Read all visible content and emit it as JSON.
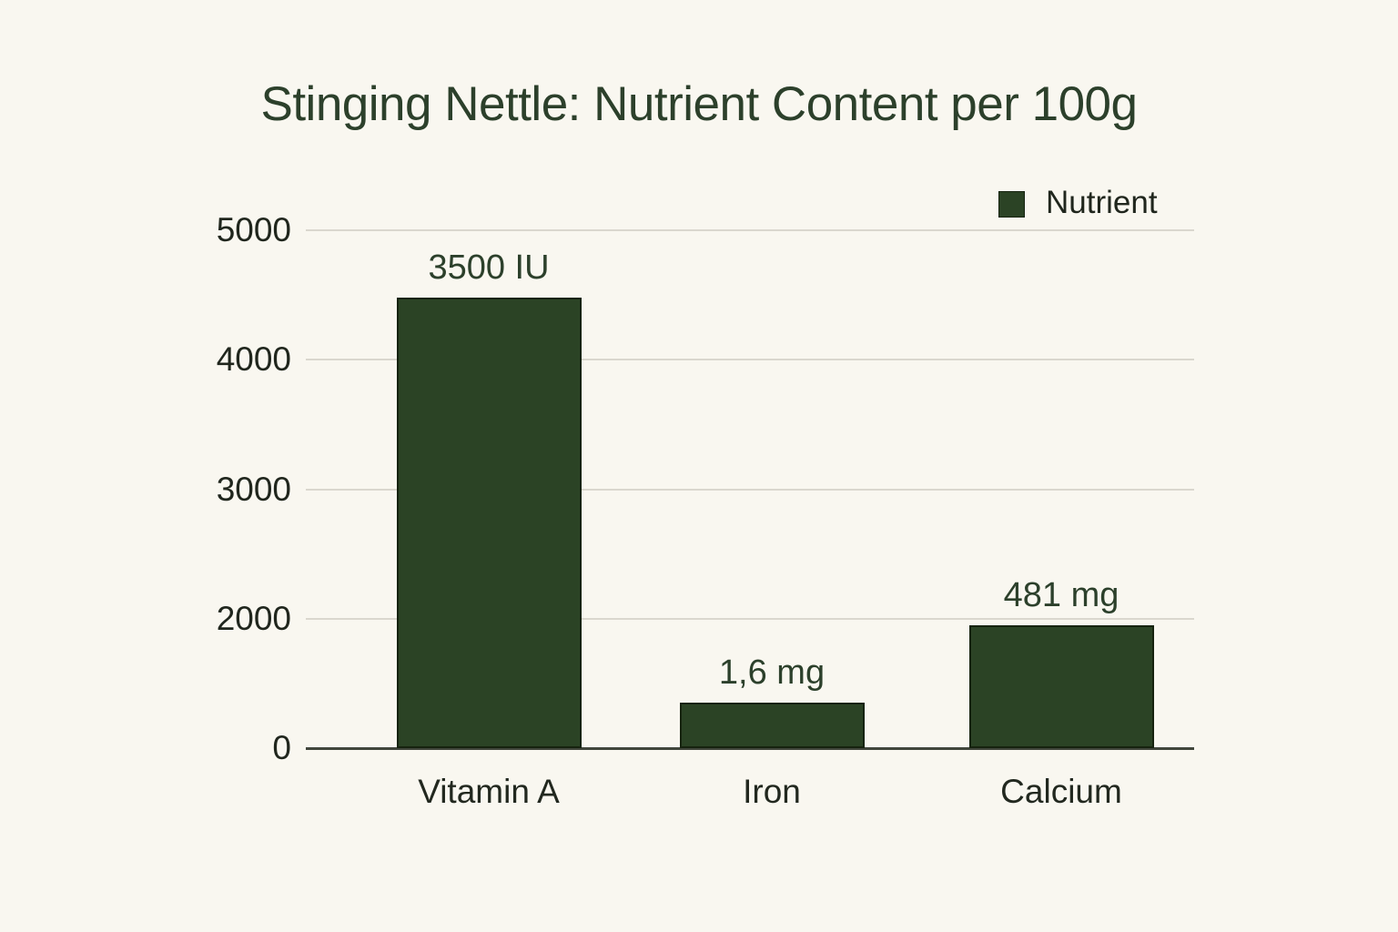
{
  "title": "Stinging Nettle: Nutrient Content per 100g",
  "legend": {
    "label": "Nutrient"
  },
  "colors": {
    "background": "#f9f7f0",
    "bar_fill": "#2b4325",
    "bar_border": "#16230f",
    "grid_line": "#dad7ce",
    "axis_line": "#41463c",
    "title_text": "#2c402b",
    "tick_text": "#20261d",
    "category_text": "#22281f",
    "value_label_text": "#2c402b"
  },
  "chart_data": {
    "type": "bar",
    "title": "Stinging Nettle: Nutrient Content per 100g",
    "categories": [
      "Vitamin A",
      "Iron",
      "Calcium"
    ],
    "values": [
      3500,
      1.6,
      481
    ],
    "value_labels": [
      "3500 IU",
      "1,6 mg",
      "481 mg"
    ],
    "series": [
      {
        "name": "Nutrient",
        "values": [
          3500,
          1.6,
          481
        ]
      }
    ],
    "xlabel": "",
    "ylabel": "",
    "ylim": [
      0,
      5000
    ],
    "y_tick_labels": [
      "5000",
      "4000",
      "3000",
      "2000",
      "0"
    ],
    "grid": true,
    "legend_position": "top-right",
    "bar_height_fractions": [
      0.87,
      0.088,
      0.237
    ]
  }
}
